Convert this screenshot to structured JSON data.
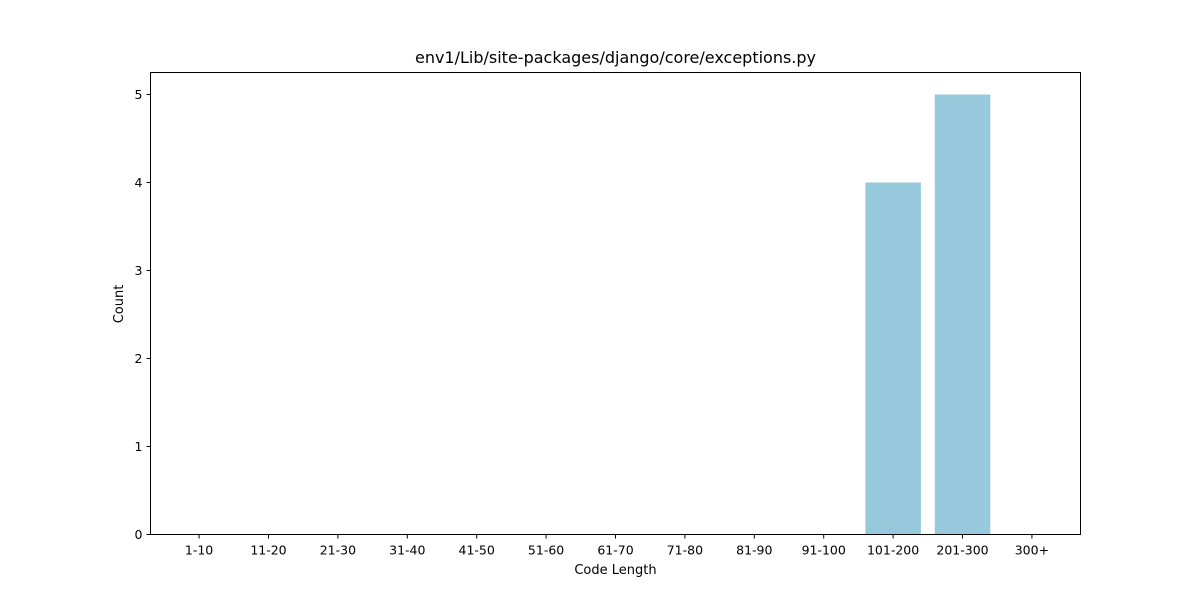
{
  "chart_data": {
    "type": "bar",
    "title": "env1/Lib/site-packages/django/core/exceptions.py",
    "xlabel": "Code Length",
    "ylabel": "Count",
    "categories": [
      "1-10",
      "11-20",
      "21-30",
      "31-40",
      "41-50",
      "51-60",
      "61-70",
      "71-80",
      "81-90",
      "91-100",
      "101-200",
      "201-300",
      "300+"
    ],
    "values": [
      0,
      0,
      0,
      0,
      0,
      0,
      0,
      0,
      0,
      0,
      4,
      5,
      0
    ],
    "ylim": [
      0,
      5.25
    ],
    "yticks": [
      0,
      1,
      2,
      3,
      4,
      5
    ],
    "bar_color": "#96c9dc",
    "grid": false,
    "legend": "none"
  }
}
